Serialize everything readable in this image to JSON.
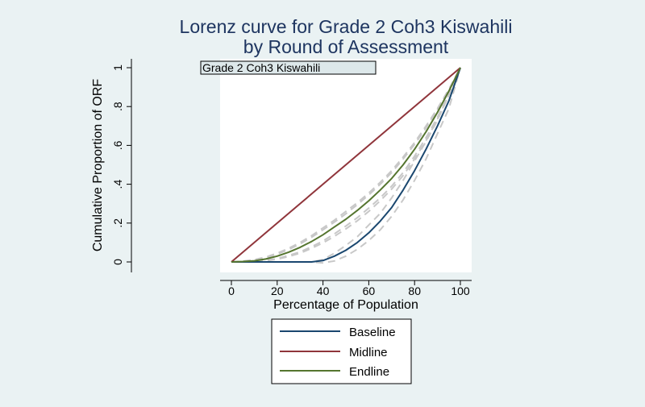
{
  "chart_data": {
    "type": "line",
    "title": "Lorenz curve for Grade 2 Coh3 Kiswahili",
    "subtitle": "by Round of Assessment",
    "xlabel": "Percentage of Population",
    "ylabel": "Cumulative Proportion of ORF",
    "xlim": [
      0,
      100
    ],
    "ylim": [
      0,
      1
    ],
    "xticks": [
      0,
      20,
      40,
      60,
      80,
      100
    ],
    "yticks": [
      0,
      0.2,
      0.4,
      0.6,
      0.8,
      1
    ],
    "ytick_labels": [
      "0",
      ".2",
      ".4",
      ".6",
      ".8",
      "1"
    ],
    "grid": false,
    "plot_background": "#ffffff",
    "page_background": "#eaf2f3",
    "legend_position": "bottom",
    "inner_label": "Grade 2 Coh3 Kiswahili",
    "series": [
      {
        "name": "Baseline",
        "color": "#1a476f",
        "x": [
          0,
          5,
          10,
          15,
          20,
          25,
          30,
          35,
          40,
          45,
          50,
          55,
          60,
          65,
          70,
          75,
          80,
          85,
          90,
          95,
          100
        ],
        "values": [
          0,
          0,
          0,
          0,
          0,
          0,
          0,
          0,
          0.007,
          0.03,
          0.06,
          0.1,
          0.15,
          0.21,
          0.28,
          0.37,
          0.47,
          0.58,
          0.7,
          0.83,
          1
        ]
      },
      {
        "name": "Midline",
        "color": "#90353b",
        "x": [
          0,
          100
        ],
        "values": [
          0,
          1
        ]
      },
      {
        "name": "Endline",
        "color": "#55752f",
        "x": [
          0,
          5,
          10,
          15,
          20,
          25,
          30,
          35,
          40,
          45,
          50,
          55,
          60,
          65,
          70,
          75,
          80,
          85,
          90,
          95,
          100
        ],
        "values": [
          0,
          0.002,
          0.006,
          0.015,
          0.03,
          0.05,
          0.075,
          0.105,
          0.14,
          0.18,
          0.22,
          0.265,
          0.315,
          0.37,
          0.43,
          0.5,
          0.58,
          0.67,
          0.77,
          0.88,
          1
        ]
      }
    ],
    "confidence_bands": {
      "color": "#c8c8c8",
      "lines": [
        {
          "x": [
            0,
            5,
            10,
            15,
            20,
            25,
            30,
            35,
            40,
            45,
            50,
            55,
            60,
            65,
            70,
            75,
            80,
            85,
            90,
            95,
            100
          ],
          "values": [
            0,
            0,
            0,
            0,
            0,
            0,
            0,
            0,
            0.012,
            0.045,
            0.085,
            0.13,
            0.19,
            0.25,
            0.33,
            0.42,
            0.52,
            0.62,
            0.73,
            0.86,
            1
          ]
        },
        {
          "x": [
            0,
            5,
            10,
            15,
            20,
            25,
            30,
            35,
            40,
            45,
            50,
            55,
            60,
            65,
            70,
            75,
            80,
            85,
            90,
            95,
            100
          ],
          "values": [
            0,
            0,
            0,
            0,
            0,
            0,
            0,
            0,
            -0.005,
            0.005,
            0.03,
            0.065,
            0.11,
            0.165,
            0.235,
            0.32,
            0.42,
            0.53,
            0.66,
            0.79,
            1
          ]
        },
        {
          "x": [
            0,
            5,
            10,
            15,
            20,
            25,
            30,
            35,
            40,
            45,
            50,
            55,
            60,
            65,
            70,
            75,
            80,
            85,
            90,
            95,
            100
          ],
          "values": [
            0,
            0.004,
            0.012,
            0.025,
            0.045,
            0.07,
            0.1,
            0.135,
            0.175,
            0.215,
            0.26,
            0.305,
            0.355,
            0.41,
            0.47,
            0.54,
            0.615,
            0.7,
            0.79,
            0.89,
            1
          ]
        },
        {
          "x": [
            0,
            5,
            10,
            15,
            20,
            25,
            30,
            35,
            40,
            45,
            50,
            55,
            60,
            65,
            70,
            75,
            80,
            85,
            90,
            95,
            100
          ],
          "values": [
            0,
            0.001,
            0.003,
            0.008,
            0.018,
            0.033,
            0.052,
            0.078,
            0.108,
            0.145,
            0.185,
            0.228,
            0.277,
            0.33,
            0.39,
            0.46,
            0.545,
            0.64,
            0.745,
            0.865,
            1
          ]
        },
        {
          "x": [
            0,
            5,
            10,
            15,
            20,
            25,
            30,
            35,
            40,
            45,
            50,
            55,
            60,
            65,
            70,
            75,
            80,
            85,
            90,
            95,
            100
          ],
          "values": [
            0,
            0.003,
            0.01,
            0.022,
            0.04,
            0.064,
            0.093,
            0.127,
            0.165,
            0.205,
            0.248,
            0.295,
            0.345,
            0.4,
            0.46,
            0.53,
            0.605,
            0.69,
            0.785,
            0.885,
            1
          ]
        },
        {
          "x": [
            0,
            5,
            10,
            15,
            20,
            25,
            30,
            35,
            40,
            45,
            50,
            55,
            60,
            65,
            70,
            75,
            80,
            85,
            90,
            95,
            100
          ],
          "values": [
            0,
            0.001,
            0.002,
            0.006,
            0.014,
            0.028,
            0.045,
            0.07,
            0.098,
            0.132,
            0.17,
            0.212,
            0.26,
            0.315,
            0.375,
            0.445,
            0.53,
            0.625,
            0.735,
            0.86,
            1
          ]
        }
      ]
    }
  }
}
